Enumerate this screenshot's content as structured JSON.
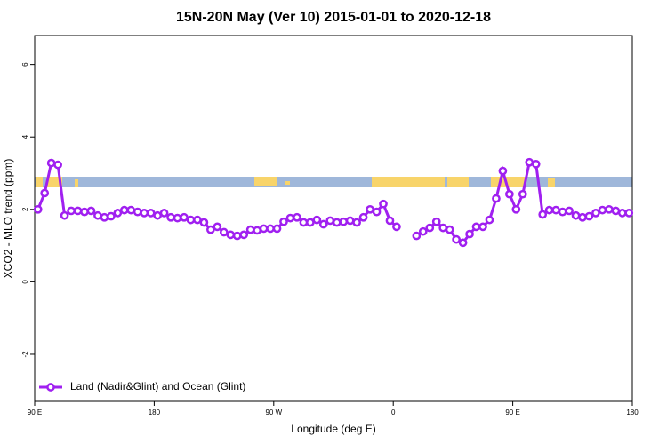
{
  "chart_data": {
    "type": "line",
    "title": "15N-20N May (Ver 10)   2015-01-01 to 2020-12-18",
    "x_label": "Longitude (deg E)",
    "y_label": "XCO2 - MLO trend (ppm)",
    "x": [
      92.5,
      97.5,
      102.5,
      107.5,
      112.5,
      117.5,
      122.5,
      127.5,
      132.5,
      137.5,
      142.5,
      147.5,
      152.5,
      157.5,
      162.5,
      167.5,
      172.5,
      177.5,
      182.5,
      187.5,
      192.5,
      197.5,
      202.5,
      207.5,
      212.5,
      217.5,
      222.5,
      227.5,
      232.5,
      237.5,
      242.5,
      247.5,
      252.5,
      257.5,
      262.5,
      267.5,
      272.5,
      277.5,
      282.5,
      287.5,
      292.5,
      297.5,
      302.5,
      307.5,
      312.5,
      317.5,
      322.5,
      327.5,
      332.5,
      337.5,
      342.5,
      347.5,
      352.5,
      357.5,
      362.5,
      367.5,
      372.5,
      377.5,
      382.5,
      387.5,
      392.5,
      397.5,
      402.5,
      407.5,
      412.5,
      417.5,
      422.5,
      427.5,
      432.5,
      437.5,
      442.5,
      447.5,
      452.5,
      457.5,
      462.5,
      467.5,
      472.5,
      477.5,
      482.5,
      487.5,
      492.5,
      497.5,
      502.5,
      507.5,
      512.5,
      517.5,
      522.5,
      527.5,
      532.5,
      537.5
    ],
    "series": [
      {
        "name": "Land (Nadir&Glint) and Ocean (Glint)",
        "color": "#a020f0",
        "values": [
          2.0,
          2.45,
          3.28,
          3.23,
          1.83,
          1.96,
          1.96,
          1.93,
          1.96,
          1.83,
          1.78,
          1.81,
          1.9,
          1.98,
          1.98,
          1.93,
          1.9,
          1.9,
          1.83,
          1.9,
          1.78,
          1.76,
          1.78,
          1.71,
          1.71,
          1.64,
          1.44,
          1.52,
          1.37,
          1.3,
          1.27,
          1.3,
          1.44,
          1.42,
          1.47,
          1.47,
          1.47,
          1.66,
          1.76,
          1.78,
          1.64,
          1.64,
          1.71,
          1.59,
          1.69,
          1.64,
          1.66,
          1.69,
          1.64,
          1.78,
          2.0,
          1.93,
          2.15,
          1.69,
          1.52,
          null,
          null,
          1.27,
          1.39,
          1.49,
          1.66,
          1.49,
          1.44,
          1.17,
          1.08,
          1.32,
          1.52,
          1.52,
          1.71,
          2.3,
          3.06,
          2.42,
          2.0,
          2.42,
          3.3,
          3.25,
          1.86,
          1.98,
          1.98,
          1.93,
          1.96,
          1.83,
          1.78,
          1.81,
          1.9,
          1.98,
          2.0,
          1.96,
          1.9,
          1.9
        ]
      }
    ],
    "xlim": [
      90,
      540
    ],
    "xticks": [
      {
        "value": 90,
        "label": "90 E"
      },
      180,
      {
        "value": 270,
        "label": "90 W"
      },
      {
        "value": 360,
        "label": "0"
      },
      {
        "value": 450,
        "label": "90 E"
      },
      {
        "value": 540,
        "label": "180"
      }
    ],
    "ylim": [
      -3.3,
      6.8
    ],
    "yticks": [
      -2,
      0,
      2,
      4,
      6
    ],
    "legend": "bottom-left",
    "grid": false
  }
}
